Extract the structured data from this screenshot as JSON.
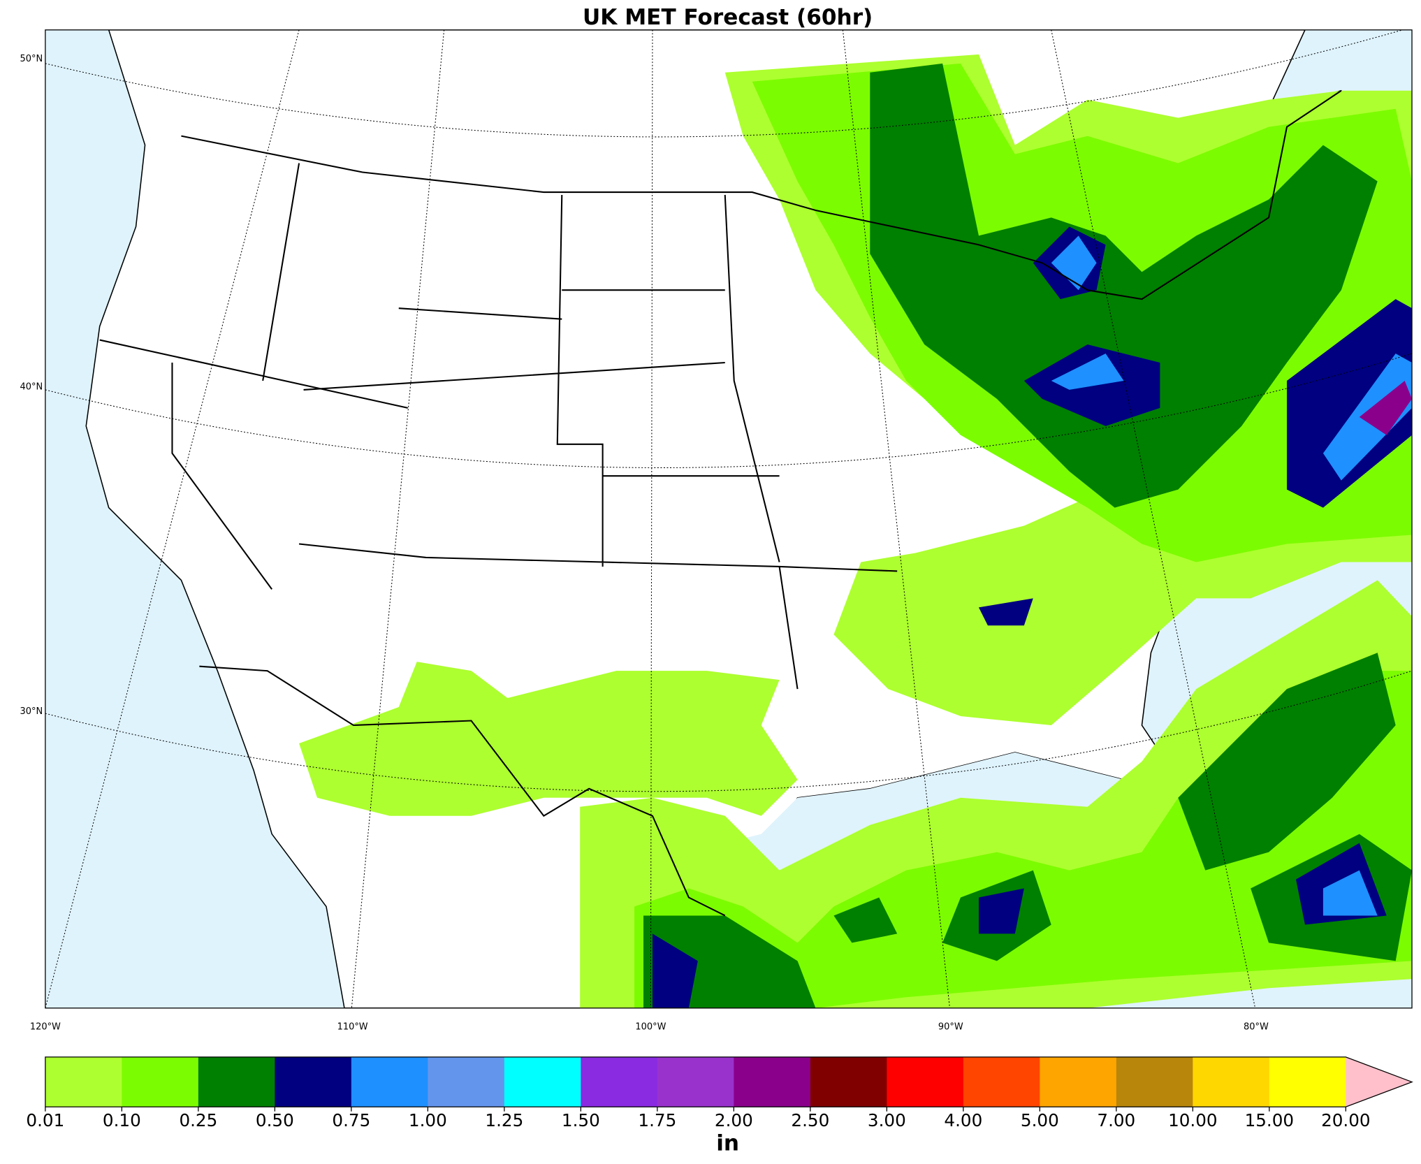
{
  "title": "UK MET Forecast (60hr)",
  "lat_labels": [
    "50°N",
    "40°N",
    "30°N"
  ],
  "lon_labels": [
    "120°W",
    "110°W",
    "100°W",
    "90°W",
    "80°W"
  ],
  "colorbar": {
    "unit": "in",
    "ticks": [
      {
        "value": 0.01,
        "label": "0.01"
      },
      {
        "value": 0.1,
        "label": "0.10"
      },
      {
        "value": 0.25,
        "label": "0.25"
      },
      {
        "value": 0.5,
        "label": "0.50"
      },
      {
        "value": 0.75,
        "label": "0.75"
      },
      {
        "value": 1,
        "label": "1.00"
      },
      {
        "value": 1.25,
        "label": "1.25"
      },
      {
        "value": 1.5,
        "label": "1.50"
      },
      {
        "value": 1.75,
        "label": "1.75"
      },
      {
        "value": 2,
        "label": "2.00"
      },
      {
        "value": 2.5,
        "label": "2.50"
      },
      {
        "value": 3,
        "label": "3.00"
      },
      {
        "value": 4,
        "label": "4.00"
      },
      {
        "value": 5,
        "label": "5.00"
      },
      {
        "value": 7,
        "label": "7.00"
      },
      {
        "value": 10,
        "label": "10.00"
      },
      {
        "value": 15,
        "label": "15.00"
      },
      {
        "value": 20,
        "label": "20.00"
      }
    ],
    "colors": [
      "#adff2f",
      "#7cfc00",
      "#008000",
      "#000080",
      "#1e90ff",
      "#6495ed",
      "#00ffff",
      "#8a2be2",
      "#9932cc",
      "#8b008b",
      "#800000",
      "#ff0000",
      "#ff4500",
      "#ffa500",
      "#b8860b",
      "#ffd700",
      "#ffff00"
    ],
    "extend_color": "#ffc0cb"
  }
}
